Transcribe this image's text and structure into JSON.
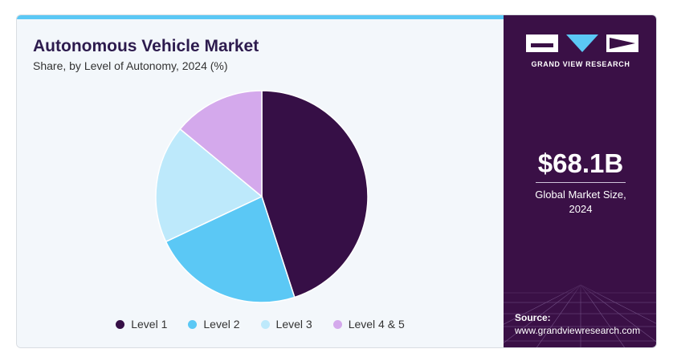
{
  "chart_data": {
    "type": "pie",
    "title": "Autonomous Vehicle Market",
    "subtitle": "Share, by Level of Autonomy, 2024 (%)",
    "categories": [
      "Level 1",
      "Level 2",
      "Level 3",
      "Level 4 & 5"
    ],
    "values": [
      45,
      23,
      18,
      14
    ],
    "colors": [
      "#360f46",
      "#5bc8f5",
      "#bde9fb",
      "#d4a9ec"
    ],
    "legend_position": "bottom"
  },
  "sidebar": {
    "brand": "GRAND VIEW RESEARCH",
    "market_size_value": "$68.1B",
    "market_size_caption_line1": "Global Market Size,",
    "market_size_caption_line2": "2024",
    "source_label": "Source:",
    "source_url": "www.grandviewresearch.com",
    "logo_icon": "gvr-logo-icon"
  },
  "colors": {
    "accent_bar": "#5bc8f5",
    "sidebar_bg": "#3a1046",
    "title_text": "#2d1b4e"
  }
}
